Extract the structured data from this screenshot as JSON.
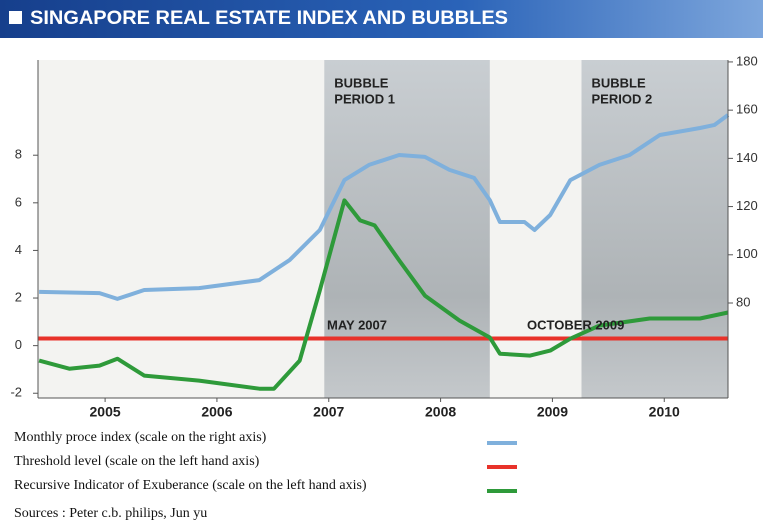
{
  "chart_data": {
    "type": "line",
    "title": "SINGAPORE REAL ESTATE INDEX AND  BUBBLES",
    "xlim": [
      2004.9,
      2011.07
    ],
    "ylim": [
      -2.2,
      12
    ],
    "y2lim": [
      40.6,
      180.8
    ],
    "yticks": [
      -2,
      0,
      2,
      4,
      6,
      8
    ],
    "y2ticks": [
      80,
      100,
      120,
      140,
      160,
      180
    ],
    "xticks": [
      {
        "value": 2005.5,
        "label": "2005"
      },
      {
        "value": 2006.5,
        "label": "2006"
      },
      {
        "value": 2007.5,
        "label": "2007"
      },
      {
        "value": 2008.5,
        "label": "2008"
      },
      {
        "value": 2009.5,
        "label": "2009"
      },
      {
        "value": 2010.5,
        "label": "2010"
      }
    ],
    "shaded_periods": [
      {
        "label": [
          "BUBBLE",
          "PERIOD 1"
        ],
        "start": 2007.46,
        "end": 2008.94
      },
      {
        "label": [
          "BUBBLE",
          "PERIOD 2"
        ],
        "start": 2009.76,
        "end": 2011.07
      }
    ],
    "annotations": [
      "MAY 2007",
      "OCTOBER 2009"
    ],
    "series": [
      {
        "name": "Monthly proce index (scale on the right axis)",
        "color": "#7fb0dc",
        "axis": "y2",
        "x": [
          2004.91,
          2005.45,
          2005.61,
          2005.85,
          2006.34,
          2006.88,
          2007.15,
          2007.42,
          2007.64,
          2007.86,
          2008.13,
          2008.36,
          2008.58,
          2008.8,
          2008.94,
          2009.03,
          2009.25,
          2009.34,
          2009.48,
          2009.66,
          2009.92,
          2010.19,
          2010.46,
          2010.82,
          2010.95,
          2011.07
        ],
        "values": [
          84.6,
          84.1,
          81.7,
          85.4,
          86.2,
          89.5,
          97.8,
          110.3,
          131,
          137.3,
          141.4,
          140.6,
          135.2,
          131.9,
          122.7,
          113.6,
          113.6,
          110.3,
          116.5,
          131,
          137.3,
          141.4,
          149.7,
          152.6,
          153.9,
          158
        ]
      },
      {
        "name": "Threshold level (scale on the left hand axis)",
        "color": "#e8322a",
        "x": [
          2004.9,
          2011.07
        ],
        "values": [
          0.3,
          0.3
        ]
      },
      {
        "name": "Recursive Indicator of Exuberance (scale on the left hand axis)",
        "color": "#2e9a3a",
        "x": [
          2004.91,
          2005.18,
          2005.45,
          2005.61,
          2005.85,
          2006.34,
          2006.88,
          2007.01,
          2007.24,
          2007.42,
          2007.64,
          2007.78,
          2007.91,
          2008.13,
          2008.36,
          2008.67,
          2008.94,
          2009.03,
          2009.3,
          2009.48,
          2009.66,
          2009.92,
          2010.37,
          2010.82,
          2011.07
        ],
        "values": [
          -0.63,
          -0.97,
          -0.84,
          -0.55,
          -1.26,
          -1.47,
          -1.81,
          -1.81,
          -0.63,
          2.32,
          6.1,
          5.26,
          5.05,
          3.58,
          2.1,
          1.05,
          0.34,
          -0.34,
          -0.42,
          -0.21,
          0.29,
          0.84,
          1.14,
          1.14,
          1.39
        ]
      }
    ],
    "source": "Sources : Peter c.b. philips, Jun yu"
  }
}
